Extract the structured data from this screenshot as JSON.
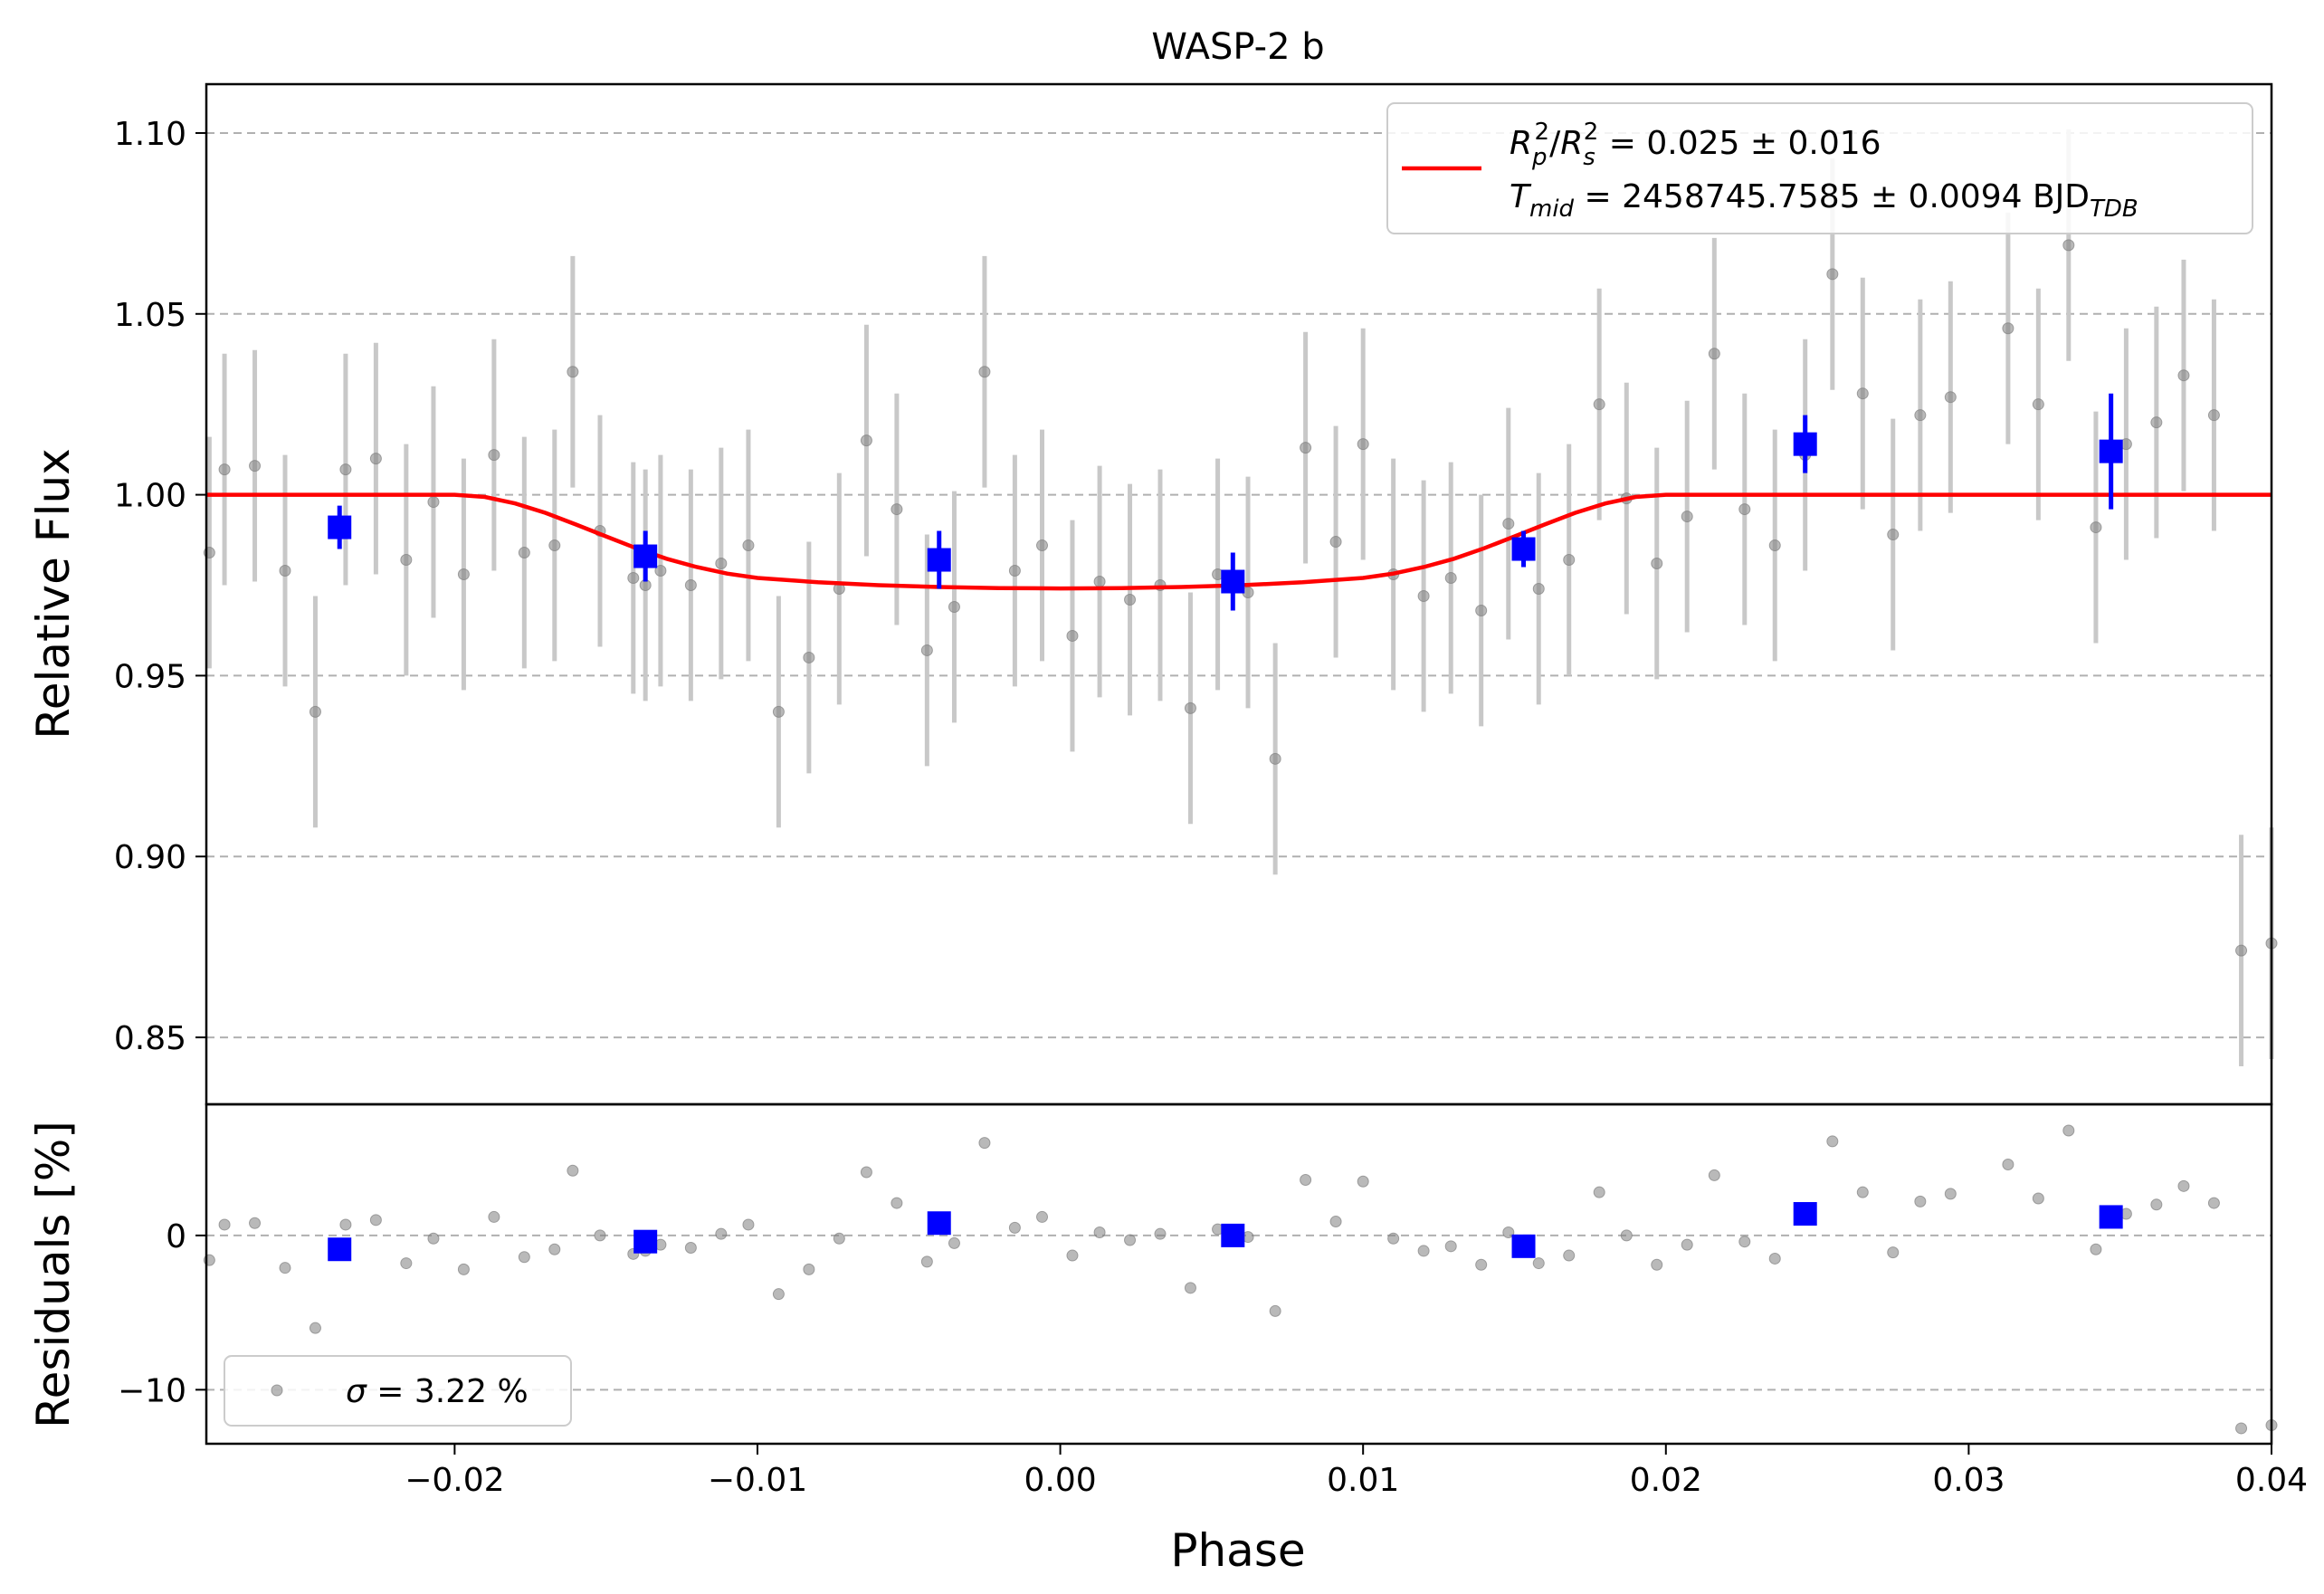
{
  "chart_data": [
    {
      "id": "lightcurve",
      "type": "scatter",
      "title": "WASP-2 b",
      "xlabel": "",
      "ylabel": "Relative Flux",
      "xlim": [
        -0.0282,
        0.04
      ],
      "ylim": [
        0.8315,
        1.1135
      ],
      "y_ticks": [
        0.85,
        0.9,
        0.95,
        1.0,
        1.05,
        1.1
      ],
      "y_tick_labels": [
        "0.85",
        "0.90",
        "0.95",
        "1.00",
        "1.05",
        "1.10"
      ],
      "grid": "horizontal dashed",
      "legend_position": "top-right",
      "legend": {
        "line1": {
          "r": "R",
          "p": "p",
          "s": "s",
          "two": "2",
          "slash": "/",
          "tail": " = 0.025 ± 0.016"
        },
        "line2": {
          "t": "T",
          "mid": "mid",
          "tail": " = 2458745.7585 ± 0.0094 BJD",
          "tdb": "TDB"
        }
      },
      "series": [
        {
          "kind": "raw",
          "color": "#808080",
          "errcolor": "#c8c8c8",
          "points": [
            [
              -0.0281,
              0.984,
              0.032
            ],
            [
              -0.0276,
              1.007,
              0.032
            ],
            [
              -0.0266,
              1.008,
              0.032
            ],
            [
              -0.0256,
              0.979,
              0.032
            ],
            [
              -0.0246,
              0.94,
              0.032
            ],
            [
              -0.0236,
              1.007,
              0.032
            ],
            [
              -0.0226,
              1.01,
              0.032
            ],
            [
              -0.0216,
              0.982,
              0.032
            ],
            [
              -0.0207,
              0.998,
              0.032
            ],
            [
              -0.0197,
              0.978,
              0.032
            ],
            [
              -0.0187,
              1.011,
              0.032
            ],
            [
              -0.0177,
              0.984,
              0.032
            ],
            [
              -0.0167,
              0.986,
              0.032
            ],
            [
              -0.0161,
              1.034,
              0.032
            ],
            [
              -0.0152,
              0.99,
              0.032
            ],
            [
              -0.0141,
              0.977,
              0.032
            ],
            [
              -0.0137,
              0.975,
              0.032
            ],
            [
              -0.0132,
              0.979,
              0.032
            ],
            [
              -0.0122,
              0.975,
              0.032
            ],
            [
              -0.0112,
              0.981,
              0.032
            ],
            [
              -0.0103,
              0.986,
              0.032
            ],
            [
              -0.0093,
              0.94,
              0.032
            ],
            [
              -0.0083,
              0.955,
              0.032
            ],
            [
              -0.0073,
              0.974,
              0.032
            ],
            [
              -0.0064,
              1.015,
              0.032
            ],
            [
              -0.0054,
              0.996,
              0.032
            ],
            [
              -0.0044,
              0.957,
              0.032
            ],
            [
              -0.0035,
              0.969,
              0.032
            ],
            [
              -0.0025,
              1.034,
              0.032
            ],
            [
              -0.0015,
              0.979,
              0.032
            ],
            [
              -0.0006,
              0.986,
              0.032
            ],
            [
              0.0004,
              0.961,
              0.032
            ],
            [
              0.0013,
              0.976,
              0.032
            ],
            [
              0.0023,
              0.971,
              0.032
            ],
            [
              0.0033,
              0.975,
              0.032
            ],
            [
              0.0043,
              0.941,
              0.032
            ],
            [
              0.0052,
              0.978,
              0.032
            ],
            [
              0.0062,
              0.973,
              0.032
            ],
            [
              0.0071,
              0.927,
              0.032
            ],
            [
              0.0081,
              1.013,
              0.032
            ],
            [
              0.0091,
              0.987,
              0.032
            ],
            [
              0.01,
              1.014,
              0.032
            ],
            [
              0.011,
              0.978,
              0.032
            ],
            [
              0.012,
              0.972,
              0.032
            ],
            [
              0.0129,
              0.977,
              0.032
            ],
            [
              0.0139,
              0.968,
              0.032
            ],
            [
              0.0148,
              0.992,
              0.032
            ],
            [
              0.0158,
              0.974,
              0.032
            ],
            [
              0.0168,
              0.982,
              0.032
            ],
            [
              0.0178,
              1.025,
              0.032
            ],
            [
              0.0187,
              0.999,
              0.032
            ],
            [
              0.0197,
              0.981,
              0.032
            ],
            [
              0.0207,
              0.994,
              0.032
            ],
            [
              0.0216,
              1.039,
              0.032
            ],
            [
              0.0226,
              0.996,
              0.032
            ],
            [
              0.0236,
              0.986,
              0.032
            ],
            [
              0.0246,
              1.011,
              0.032
            ],
            [
              0.0255,
              1.061,
              0.032
            ],
            [
              0.0265,
              1.028,
              0.032
            ],
            [
              0.0275,
              0.989,
              0.032
            ],
            [
              0.0284,
              1.022,
              0.032
            ],
            [
              0.0294,
              1.027,
              0.032
            ],
            [
              0.0313,
              1.046,
              0.032
            ],
            [
              0.0323,
              1.025,
              0.032
            ],
            [
              0.0333,
              1.069,
              0.032
            ],
            [
              0.0342,
              0.991,
              0.032
            ],
            [
              0.0352,
              1.014,
              0.032
            ],
            [
              0.0362,
              1.02,
              0.032
            ],
            [
              0.0371,
              1.033,
              0.032
            ],
            [
              0.0381,
              1.022,
              0.032
            ],
            [
              0.039,
              0.874,
              0.032
            ],
            [
              0.04,
              0.876,
              0.032
            ]
          ]
        },
        {
          "kind": "binned",
          "color": "#0000ff",
          "points": [
            [
              -0.0238,
              0.991,
              0.006
            ],
            [
              -0.0137,
              0.983,
              0.007
            ],
            [
              -0.004,
              0.982,
              0.008
            ],
            [
              0.0057,
              0.976,
              0.008
            ],
            [
              0.0153,
              0.985,
              0.005
            ],
            [
              0.0246,
              1.014,
              0.008
            ],
            [
              0.0347,
              1.012,
              0.016
            ]
          ]
        },
        {
          "kind": "model",
          "color": "#ff0000",
          "points": [
            [
              -0.0282,
              1.0
            ],
            [
              -0.02,
              1.0
            ],
            [
              -0.019,
              0.9994
            ],
            [
              -0.018,
              0.9976
            ],
            [
              -0.017,
              0.995
            ],
            [
              -0.016,
              0.9918
            ],
            [
              -0.015,
              0.9885
            ],
            [
              -0.014,
              0.9852
            ],
            [
              -0.013,
              0.9823
            ],
            [
              -0.012,
              0.98
            ],
            [
              -0.011,
              0.9782
            ],
            [
              -0.01,
              0.977
            ],
            [
              -0.008,
              0.9758
            ],
            [
              -0.006,
              0.975
            ],
            [
              -0.004,
              0.9745
            ],
            [
              -0.002,
              0.9742
            ],
            [
              0.0,
              0.9741
            ],
            [
              0.002,
              0.9742
            ],
            [
              0.004,
              0.9745
            ],
            [
              0.006,
              0.975
            ],
            [
              0.008,
              0.9758
            ],
            [
              0.01,
              0.977
            ],
            [
              0.011,
              0.9782
            ],
            [
              0.012,
              0.98
            ],
            [
              0.013,
              0.9823
            ],
            [
              0.014,
              0.9852
            ],
            [
              0.015,
              0.9885
            ],
            [
              0.016,
              0.9918
            ],
            [
              0.017,
              0.995
            ],
            [
              0.018,
              0.9976
            ],
            [
              0.019,
              0.9994
            ],
            [
              0.02,
              1.0
            ],
            [
              0.04,
              1.0
            ]
          ]
        }
      ]
    },
    {
      "id": "residuals",
      "type": "scatter",
      "xlabel": "Phase",
      "ylabel": "Residuals [%]",
      "xlim": [
        -0.0282,
        0.04
      ],
      "ylim": [
        -13.5,
        8.5
      ],
      "y_ticks": [
        -10,
        0
      ],
      "y_tick_labels": [
        "−10",
        "0"
      ],
      "x_ticks": [
        -0.02,
        -0.01,
        0.0,
        0.01,
        0.02,
        0.03,
        0.04
      ],
      "x_tick_labels": [
        "−0.02",
        "−0.01",
        "0.00",
        "0.01",
        "0.02",
        "0.03",
        "0.04"
      ],
      "grid": "horizontal dashed",
      "legend_position": "bottom-left",
      "legend": {
        "sigma": "σ",
        "tail": " = 3.22 %"
      },
      "series": [
        {
          "kind": "raw",
          "color": "#808080",
          "points": [
            [
              -0.0281,
              -1.6
            ],
            [
              -0.0276,
              0.7
            ],
            [
              -0.0266,
              0.8
            ],
            [
              -0.0256,
              -2.1
            ],
            [
              -0.0246,
              -6.0
            ],
            [
              -0.0236,
              0.7
            ],
            [
              -0.0226,
              1.0
            ],
            [
              -0.0216,
              -1.8
            ],
            [
              -0.0207,
              -0.2
            ],
            [
              -0.0197,
              -2.2
            ],
            [
              -0.0187,
              1.2
            ],
            [
              -0.0177,
              -1.4
            ],
            [
              -0.0167,
              -0.9
            ],
            [
              -0.0161,
              4.2
            ],
            [
              -0.0152,
              0.0
            ],
            [
              -0.0141,
              -1.2
            ],
            [
              -0.0137,
              -1.0
            ],
            [
              -0.0132,
              -0.6
            ],
            [
              -0.0122,
              -0.8
            ],
            [
              -0.0112,
              0.1
            ],
            [
              -0.0103,
              0.7
            ],
            [
              -0.0093,
              -3.8
            ],
            [
              -0.0083,
              -2.2
            ],
            [
              -0.0073,
              -0.2
            ],
            [
              -0.0064,
              4.1
            ],
            [
              -0.0054,
              2.1
            ],
            [
              -0.0044,
              -1.7
            ],
            [
              -0.0035,
              -0.5
            ],
            [
              -0.0025,
              6.0
            ],
            [
              -0.0015,
              0.5
            ],
            [
              -0.0006,
              1.2
            ],
            [
              0.0004,
              -1.3
            ],
            [
              0.0013,
              0.2
            ],
            [
              0.0023,
              -0.3
            ],
            [
              0.0033,
              0.1
            ],
            [
              0.0043,
              -3.4
            ],
            [
              0.0052,
              0.4
            ],
            [
              0.0062,
              -0.1
            ],
            [
              0.0071,
              -4.9
            ],
            [
              0.0081,
              3.6
            ],
            [
              0.0091,
              0.9
            ],
            [
              0.01,
              3.5
            ],
            [
              0.011,
              -0.2
            ],
            [
              0.012,
              -1.0
            ],
            [
              0.0129,
              -0.7
            ],
            [
              0.0139,
              -1.9
            ],
            [
              0.0148,
              0.2
            ],
            [
              0.0158,
              -1.8
            ],
            [
              0.0168,
              -1.3
            ],
            [
              0.0178,
              2.8
            ],
            [
              0.0187,
              0.0
            ],
            [
              0.0197,
              -1.9
            ],
            [
              0.0207,
              -0.6
            ],
            [
              0.0216,
              3.9
            ],
            [
              0.0226,
              -0.4
            ],
            [
              0.0236,
              -1.5
            ],
            [
              0.0246,
              1.1
            ],
            [
              0.0255,
              6.1
            ],
            [
              0.0265,
              2.8
            ],
            [
              0.0275,
              -1.1
            ],
            [
              0.0284,
              2.2
            ],
            [
              0.0294,
              2.7
            ],
            [
              0.0313,
              4.6
            ],
            [
              0.0323,
              2.4
            ],
            [
              0.0333,
              6.8
            ],
            [
              0.0342,
              -0.9
            ],
            [
              0.0352,
              1.4
            ],
            [
              0.0362,
              2.0
            ],
            [
              0.0371,
              3.2
            ],
            [
              0.0381,
              2.1
            ],
            [
              0.039,
              -12.5
            ],
            [
              0.04,
              -12.3
            ]
          ]
        },
        {
          "kind": "binned",
          "color": "#0000ff",
          "points": [
            [
              -0.0238,
              -0.9
            ],
            [
              -0.0137,
              -0.4
            ],
            [
              -0.004,
              0.8
            ],
            [
              0.0057,
              0.0
            ],
            [
              0.0153,
              -0.7
            ],
            [
              0.0246,
              1.4
            ],
            [
              0.0347,
              1.2
            ]
          ]
        }
      ]
    }
  ]
}
